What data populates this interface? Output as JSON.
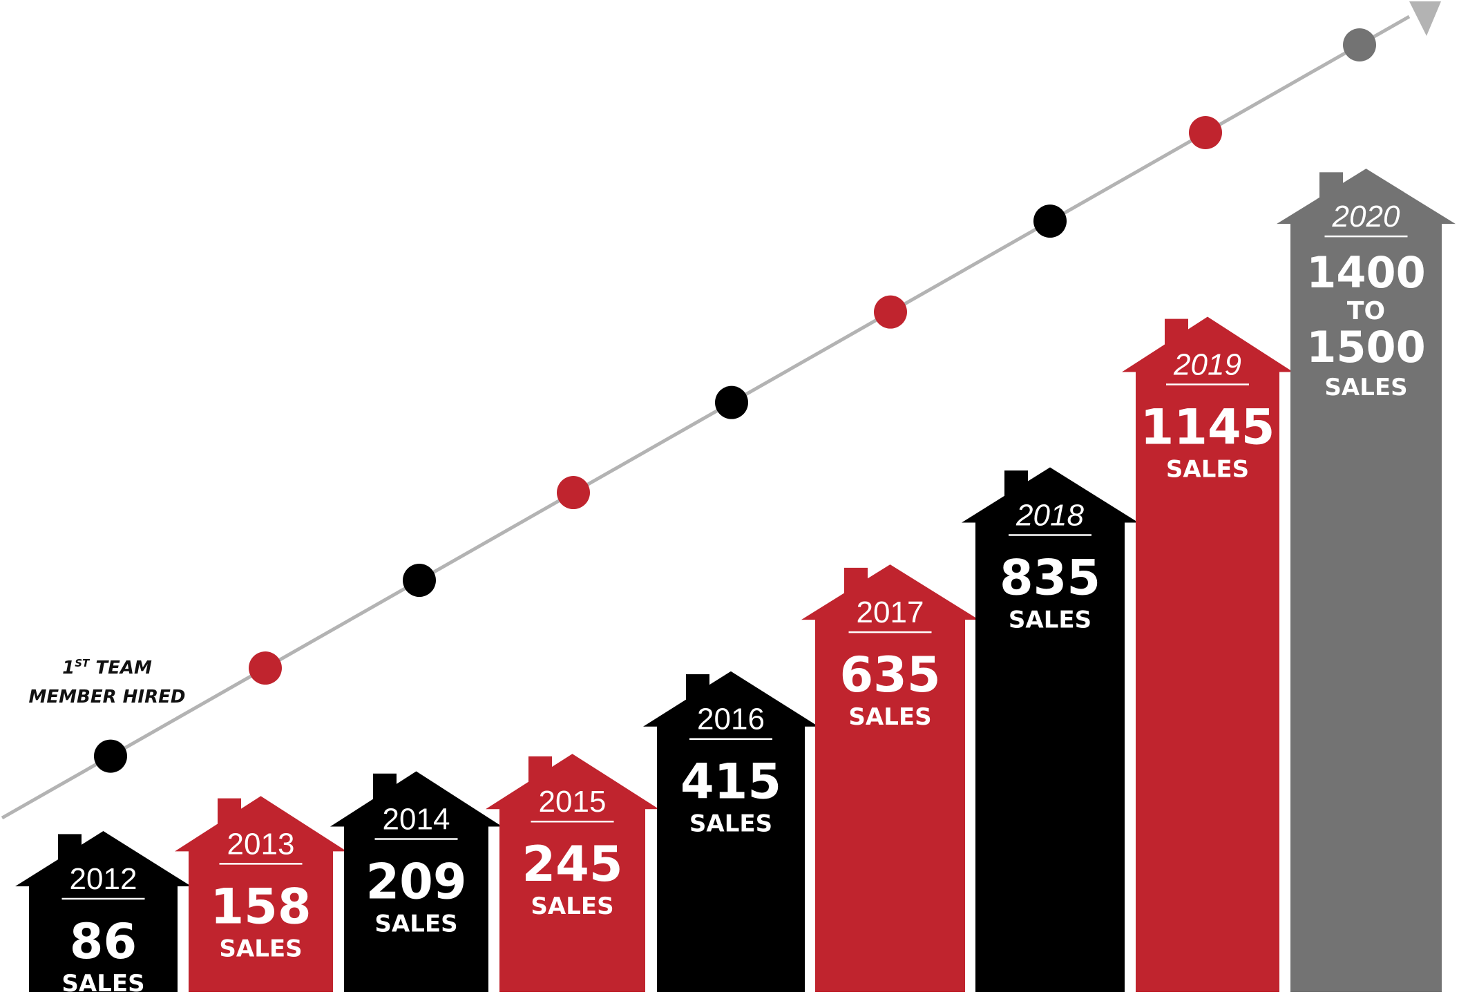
{
  "chart_data": {
    "type": "bar",
    "categories": [
      "2012",
      "2013",
      "2014",
      "2015",
      "2016",
      "2017",
      "2018",
      "2019",
      "2020"
    ],
    "values": [
      86,
      158,
      209,
      245,
      415,
      635,
      835,
      1145,
      1450
    ],
    "value_labels": [
      "86",
      "158",
      "209",
      "245",
      "415",
      "635",
      "835",
      "1145",
      [
        "1400",
        "TO",
        "1500"
      ]
    ],
    "unit_label": "SALES",
    "bar_colors": [
      "#000000",
      "#c0242e",
      "#000000",
      "#c0242e",
      "#000000",
      "#c0242e",
      "#000000",
      "#c0242e",
      "#737373"
    ],
    "dot_colors": [
      "#000000",
      "#c0242e",
      "#000000",
      "#c0242e",
      "#000000",
      "#c0242e",
      "#000000",
      "#c0242e",
      "#737373"
    ],
    "trend_line_color": "#b3b3b3",
    "annotation": {
      "line1_prefix": "1",
      "line1_superscript": "ST",
      "line1_rest": " TEAM",
      "line2": "MEMBER HIRED"
    },
    "bar_shape": "house",
    "grid": false,
    "legend": "none"
  }
}
